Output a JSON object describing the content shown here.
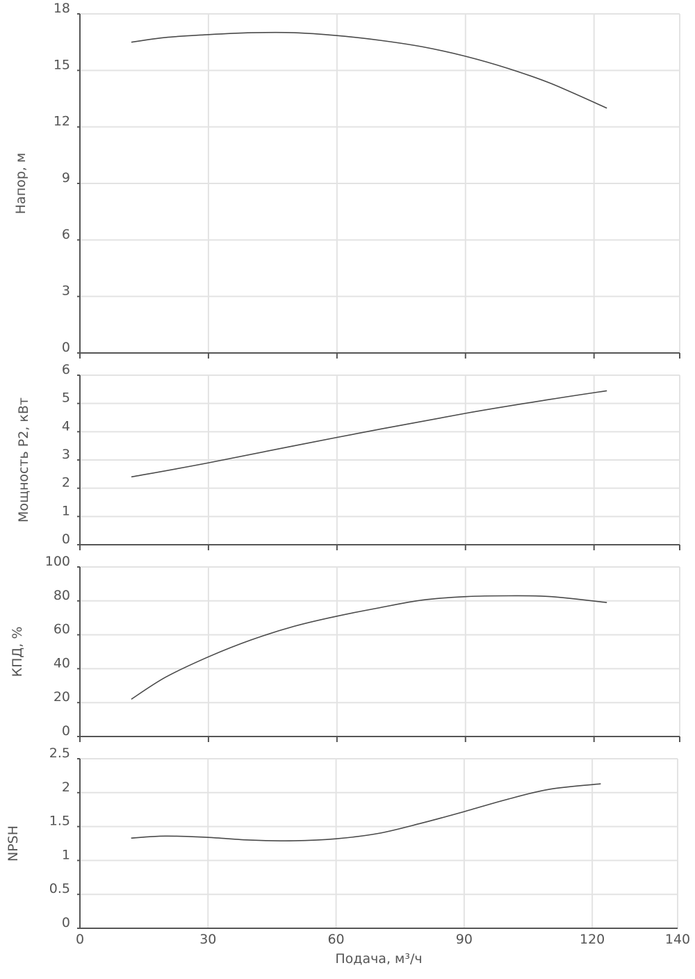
{
  "chart_data": [
    {
      "type": "line",
      "ylabel": "Напор, м",
      "xlim": [
        0,
        140
      ],
      "ylim": [
        0,
        18
      ],
      "x_ticks": [
        "0",
        "30",
        "60",
        "90",
        "120",
        "140"
      ],
      "y_ticks": [
        "0",
        "3",
        "6",
        "9",
        "12",
        "15",
        "18"
      ],
      "grid": true,
      "series": [
        {
          "x": [
            12,
            20,
            30,
            40,
            50,
            60,
            70,
            80,
            90,
            100,
            110,
            123
          ],
          "y": [
            16.5,
            16.75,
            16.9,
            17.0,
            17.0,
            16.85,
            16.6,
            16.25,
            15.75,
            15.1,
            14.3,
            13.0
          ]
        }
      ]
    },
    {
      "type": "line",
      "ylabel": "Мощность P2, кВт",
      "xlim": [
        0,
        140
      ],
      "ylim": [
        0,
        6
      ],
      "x_ticks": [
        "0",
        "30",
        "60",
        "90",
        "120",
        "140"
      ],
      "y_ticks": [
        "0",
        "1",
        "2",
        "3",
        "4",
        "5",
        "6"
      ],
      "grid": true,
      "series": [
        {
          "x": [
            12,
            30,
            60,
            90,
            110,
            123
          ],
          "y": [
            2.4,
            2.9,
            3.8,
            4.65,
            5.15,
            5.45
          ]
        }
      ]
    },
    {
      "type": "line",
      "ylabel": "КПД, %",
      "xlim": [
        0,
        140
      ],
      "ylim": [
        0,
        100
      ],
      "x_ticks": [
        "0",
        "30",
        "60",
        "90",
        "120",
        "140"
      ],
      "y_ticks": [
        "0",
        "20",
        "40",
        "60",
        "80",
        "100"
      ],
      "grid": true,
      "series": [
        {
          "x": [
            12,
            20,
            30,
            40,
            50,
            60,
            70,
            80,
            90,
            100,
            110,
            123
          ],
          "y": [
            22,
            35,
            47,
            57,
            65,
            71,
            76,
            80.5,
            82.5,
            83,
            82.5,
            79
          ]
        }
      ]
    },
    {
      "type": "line",
      "ylabel": "NPSH",
      "xlabel": "Подача, м³/ч",
      "xlim": [
        0,
        140
      ],
      "ylim": [
        0,
        2.5
      ],
      "x_ticks": [
        "0",
        "30",
        "60",
        "90",
        "120",
        "140"
      ],
      "y_ticks": [
        "0",
        "0.5",
        "1",
        "1.5",
        "2",
        "2.5"
      ],
      "grid": true,
      "series": [
        {
          "x": [
            12,
            20,
            30,
            40,
            50,
            60,
            70,
            80,
            90,
            100,
            110,
            122
          ],
          "y": [
            1.33,
            1.36,
            1.34,
            1.3,
            1.29,
            1.32,
            1.4,
            1.55,
            1.72,
            1.9,
            2.05,
            2.13
          ]
        }
      ]
    }
  ]
}
